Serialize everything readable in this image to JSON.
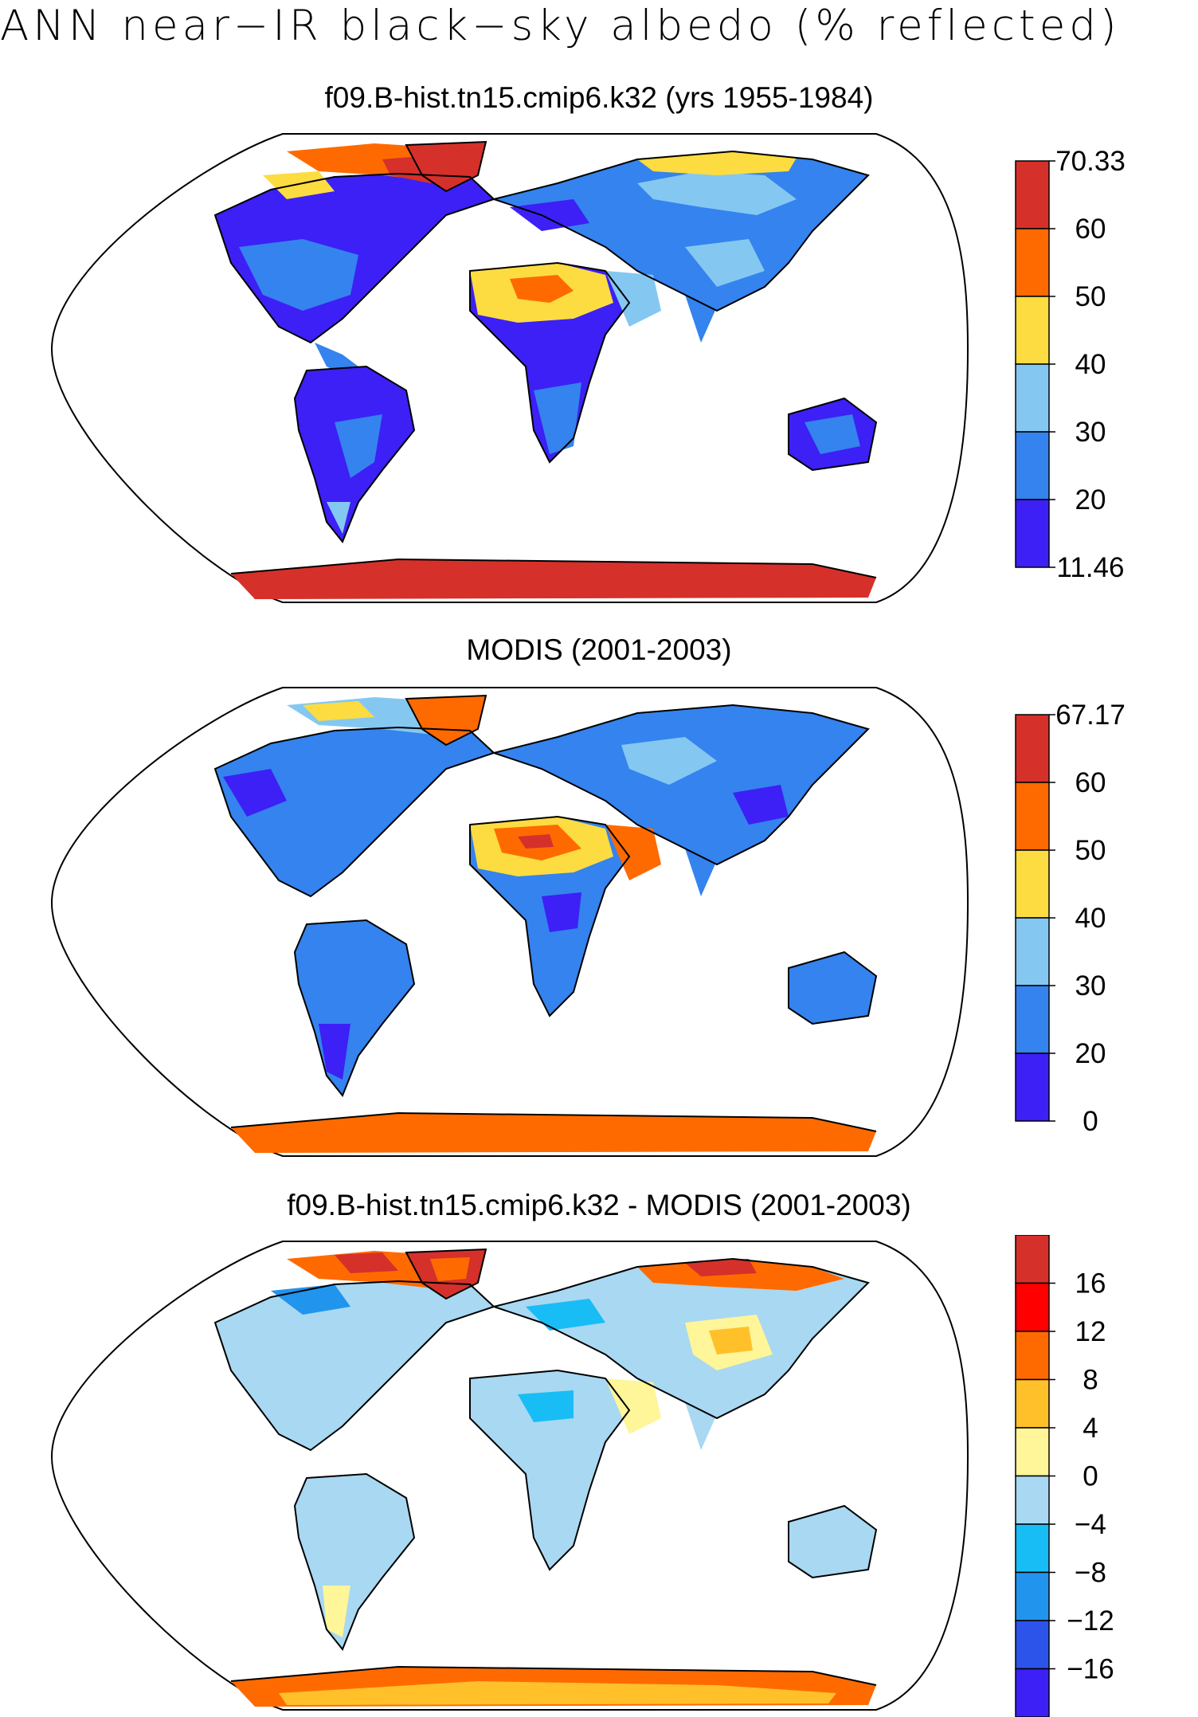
{
  "title": "ANN near−IR black−sky albedo (% reflected)",
  "panels": [
    {
      "id": "model",
      "title": "f09.B-hist.tn15.cmip6.k32 (yrs 1955-1984)",
      "colorbar": {
        "labels": [
          "70.33",
          "60",
          "50",
          "40",
          "30",
          "20",
          "11.46"
        ],
        "colors": [
          "#d6302a",
          "#ff6a00",
          "#fcdc40",
          "#84c8f2",
          "#3483ee",
          "#3c20f6"
        ]
      }
    },
    {
      "id": "obs",
      "title": "MODIS (2001-2003)",
      "colorbar": {
        "labels": [
          "67.17",
          "60",
          "50",
          "40",
          "30",
          "20",
          "0"
        ],
        "colors": [
          "#d6302a",
          "#ff6a00",
          "#fcdc40",
          "#84c8f2",
          "#3483ee",
          "#3c20f6"
        ]
      }
    },
    {
      "id": "diff",
      "title": "f09.B-hist.tn15.cmip6.k32 - MODIS (2001-2003)",
      "colorbar": {
        "labels": [
          "16",
          "12",
          "8",
          "4",
          "0",
          "−4",
          "−8",
          "−12",
          "−16"
        ],
        "colors": [
          "#d6302a",
          "#ff0000",
          "#ff6a00",
          "#ffc02a",
          "#fff599",
          "#a8d8f2",
          "#19bdf5",
          "#2194ee",
          "#2c54ea",
          "#3c20f6"
        ]
      }
    }
  ]
}
